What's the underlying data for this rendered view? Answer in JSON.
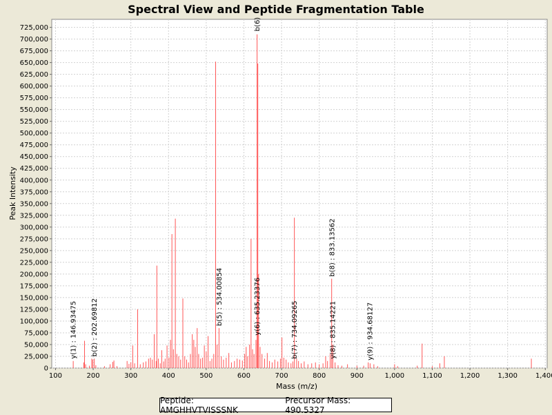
{
  "chart_data": {
    "type": "bar",
    "title": "Spectral View and Peptide Fragmentation Table",
    "xlabel": "Mass (m/z)",
    "ylabel": "Peak Intensity",
    "xlim": [
      90,
      1405
    ],
    "ylim": [
      0,
      742000
    ],
    "grid": true,
    "xticks": [
      100,
      200,
      300,
      400,
      500,
      600,
      700,
      800,
      900,
      1000,
      1100,
      1200,
      1300,
      1400
    ],
    "xtick_labels": [
      "100",
      "200",
      "300",
      "400",
      "500",
      "600",
      "700",
      "800",
      "900",
      "1,000",
      "1,100",
      "1,200",
      "1,300",
      "1,400"
    ],
    "yticks": [
      0,
      25000,
      50000,
      75000,
      100000,
      125000,
      150000,
      175000,
      200000,
      225000,
      250000,
      275000,
      300000,
      325000,
      350000,
      375000,
      400000,
      425000,
      450000,
      475000,
      500000,
      525000,
      550000,
      575000,
      600000,
      625000,
      650000,
      675000,
      700000,
      725000
    ],
    "ytick_labels": [
      "0",
      "25,000",
      "50,000",
      "75,000",
      "100,000",
      "125,000",
      "150,000",
      "175,000",
      "200,000",
      "225,000",
      "250,000",
      "275,000",
      "300,000",
      "325,000",
      "350,000",
      "375,000",
      "400,000",
      "425,000",
      "450,000",
      "475,000",
      "500,000",
      "525,000",
      "550,000",
      "575,000",
      "600,000",
      "625,000",
      "650,000",
      "675,000",
      "700,000",
      "725,000"
    ],
    "peaks": [
      {
        "mz": 147,
        "intensity": 15000
      },
      {
        "mz": 175,
        "intensity": 12000
      },
      {
        "mz": 177,
        "intensity": 58000
      },
      {
        "mz": 180,
        "intensity": 8000
      },
      {
        "mz": 190,
        "intensity": 5000
      },
      {
        "mz": 196,
        "intensity": 20000
      },
      {
        "mz": 199,
        "intensity": 18000
      },
      {
        "mz": 203,
        "intensity": 20000
      },
      {
        "mz": 207,
        "intensity": 6000
      },
      {
        "mz": 230,
        "intensity": 4000
      },
      {
        "mz": 245,
        "intensity": 8000
      },
      {
        "mz": 252,
        "intensity": 13000
      },
      {
        "mz": 255,
        "intensity": 16000
      },
      {
        "mz": 263,
        "intensity": 4000
      },
      {
        "mz": 290,
        "intensity": 15000
      },
      {
        "mz": 295,
        "intensity": 9000
      },
      {
        "mz": 300,
        "intensity": 12000
      },
      {
        "mz": 305,
        "intensity": 48000
      },
      {
        "mz": 310,
        "intensity": 10000
      },
      {
        "mz": 318,
        "intensity": 125000
      },
      {
        "mz": 325,
        "intensity": 8000
      },
      {
        "mz": 333,
        "intensity": 12000
      },
      {
        "mz": 340,
        "intensity": 14000
      },
      {
        "mz": 347,
        "intensity": 20000
      },
      {
        "mz": 352,
        "intensity": 22000
      },
      {
        "mz": 357,
        "intensity": 18000
      },
      {
        "mz": 362,
        "intensity": 72000
      },
      {
        "mz": 367,
        "intensity": 15000
      },
      {
        "mz": 369,
        "intensity": 218000
      },
      {
        "mz": 373,
        "intensity": 20000
      },
      {
        "mz": 378,
        "intensity": 10000
      },
      {
        "mz": 382,
        "intensity": 38000
      },
      {
        "mz": 387,
        "intensity": 14000
      },
      {
        "mz": 391,
        "intensity": 20000
      },
      {
        "mz": 396,
        "intensity": 48000
      },
      {
        "mz": 401,
        "intensity": 22000
      },
      {
        "mz": 405,
        "intensity": 60000
      },
      {
        "mz": 409,
        "intensity": 285000
      },
      {
        "mz": 413,
        "intensity": 40000
      },
      {
        "mz": 418,
        "intensity": 318000
      },
      {
        "mz": 422,
        "intensity": 30000
      },
      {
        "mz": 427,
        "intensity": 25000
      },
      {
        "mz": 432,
        "intensity": 18000
      },
      {
        "mz": 438,
        "intensity": 148000
      },
      {
        "mz": 443,
        "intensity": 25000
      },
      {
        "mz": 448,
        "intensity": 18000
      },
      {
        "mz": 453,
        "intensity": 12000
      },
      {
        "mz": 458,
        "intensity": 30000
      },
      {
        "mz": 463,
        "intensity": 72000
      },
      {
        "mz": 467,
        "intensity": 60000
      },
      {
        "mz": 471,
        "intensity": 45000
      },
      {
        "mz": 476,
        "intensity": 85000
      },
      {
        "mz": 480,
        "intensity": 30000
      },
      {
        "mz": 485,
        "intensity": 20000
      },
      {
        "mz": 490,
        "intensity": 22000
      },
      {
        "mz": 495,
        "intensity": 48000
      },
      {
        "mz": 500,
        "intensity": 35000
      },
      {
        "mz": 505,
        "intensity": 68000
      },
      {
        "mz": 510,
        "intensity": 15000
      },
      {
        "mz": 515,
        "intensity": 20000
      },
      {
        "mz": 520,
        "intensity": 30000
      },
      {
        "mz": 525,
        "intensity": 652000
      },
      {
        "mz": 529,
        "intensity": 50000
      },
      {
        "mz": 534,
        "intensity": 85000
      },
      {
        "mz": 540,
        "intensity": 25000
      },
      {
        "mz": 546,
        "intensity": 18000
      },
      {
        "mz": 553,
        "intensity": 22000
      },
      {
        "mz": 560,
        "intensity": 32000
      },
      {
        "mz": 567,
        "intensity": 12000
      },
      {
        "mz": 575,
        "intensity": 15000
      },
      {
        "mz": 582,
        "intensity": 20000
      },
      {
        "mz": 589,
        "intensity": 18000
      },
      {
        "mz": 596,
        "intensity": 16000
      },
      {
        "mz": 602,
        "intensity": 30000
      },
      {
        "mz": 606,
        "intensity": 45000
      },
      {
        "mz": 610,
        "intensity": 25000
      },
      {
        "mz": 615,
        "intensity": 50000
      },
      {
        "mz": 619,
        "intensity": 275000
      },
      {
        "mz": 623,
        "intensity": 40000
      },
      {
        "mz": 627,
        "intensity": 30000
      },
      {
        "mz": 632,
        "intensity": 60000
      },
      {
        "mz": 635,
        "intensity": 710000
      },
      {
        "mz": 637,
        "intensity": 648000
      },
      {
        "mz": 639,
        "intensity": 200000
      },
      {
        "mz": 643,
        "intensity": 45000
      },
      {
        "mz": 648,
        "intensity": 30000
      },
      {
        "mz": 655,
        "intensity": 20000
      },
      {
        "mz": 662,
        "intensity": 32000
      },
      {
        "mz": 668,
        "intensity": 15000
      },
      {
        "mz": 675,
        "intensity": 12000
      },
      {
        "mz": 682,
        "intensity": 18000
      },
      {
        "mz": 690,
        "intensity": 14000
      },
      {
        "mz": 697,
        "intensity": 20000
      },
      {
        "mz": 701,
        "intensity": 65000
      },
      {
        "mz": 706,
        "intensity": 22000
      },
      {
        "mz": 712,
        "intensity": 18000
      },
      {
        "mz": 718,
        "intensity": 12000
      },
      {
        "mz": 725,
        "intensity": 10000
      },
      {
        "mz": 730,
        "intensity": 14000
      },
      {
        "mz": 734,
        "intensity": 320000
      },
      {
        "mz": 740,
        "intensity": 20000
      },
      {
        "mz": 745,
        "intensity": 15000
      },
      {
        "mz": 752,
        "intensity": 10000
      },
      {
        "mz": 760,
        "intensity": 14000
      },
      {
        "mz": 770,
        "intensity": 8000
      },
      {
        "mz": 780,
        "intensity": 10000
      },
      {
        "mz": 790,
        "intensity": 12000
      },
      {
        "mz": 800,
        "intensity": 8000
      },
      {
        "mz": 810,
        "intensity": 10000
      },
      {
        "mz": 817,
        "intensity": 25000
      },
      {
        "mz": 822,
        "intensity": 15000
      },
      {
        "mz": 829,
        "intensity": 30000
      },
      {
        "mz": 833,
        "intensity": 190000
      },
      {
        "mz": 836,
        "intensity": 50000
      },
      {
        "mz": 842,
        "intensity": 12000
      },
      {
        "mz": 850,
        "intensity": 6000
      },
      {
        "mz": 860,
        "intensity": 5000
      },
      {
        "mz": 875,
        "intensity": 8000
      },
      {
        "mz": 900,
        "intensity": 5000
      },
      {
        "mz": 918,
        "intensity": 5000
      },
      {
        "mz": 930,
        "intensity": 12000
      },
      {
        "mz": 935,
        "intensity": 10000
      },
      {
        "mz": 945,
        "intensity": 8000
      },
      {
        "mz": 955,
        "intensity": 4000
      },
      {
        "mz": 1000,
        "intensity": 8000
      },
      {
        "mz": 1008,
        "intensity": 4000
      },
      {
        "mz": 1060,
        "intensity": 5000
      },
      {
        "mz": 1073,
        "intensity": 52000
      },
      {
        "mz": 1100,
        "intensity": 4000
      },
      {
        "mz": 1120,
        "intensity": 10000
      },
      {
        "mz": 1132,
        "intensity": 25000
      },
      {
        "mz": 1363,
        "intensity": 20000
      }
    ],
    "annotations": [
      {
        "mz": 146.93475,
        "intensity": 15000,
        "label": "y(1) : 146.93475"
      },
      {
        "mz": 202.69812,
        "intensity": 20000,
        "label": "b(2) : 202.69812"
      },
      {
        "mz": 534.00854,
        "intensity": 85000,
        "label": "b(5) : 534.00854"
      },
      {
        "mz": 635.23376,
        "intensity": 65000,
        "label": "y(6) : 635.23376"
      },
      {
        "mz": 635.23376,
        "intensity": 712000,
        "label": "b(6)"
      },
      {
        "mz": 734.09265,
        "intensity": 15000,
        "label": "b(7) : 734.09265"
      },
      {
        "mz": 835.14221,
        "intensity": 15000,
        "label": "y(8) : 835.14221"
      },
      {
        "mz": 833.13562,
        "intensity": 190000,
        "label": "b(8) : 833.13562"
      },
      {
        "mz": 934.68127,
        "intensity": 12000,
        "label": "y(9) : 934.68127"
      }
    ],
    "legend": {
      "peptide_label": "Peptide:",
      "peptide": "AMGHHVTVISSSNK",
      "precursor_label": "Precursor Mass:",
      "precursor_mass": "490.5327"
    }
  }
}
